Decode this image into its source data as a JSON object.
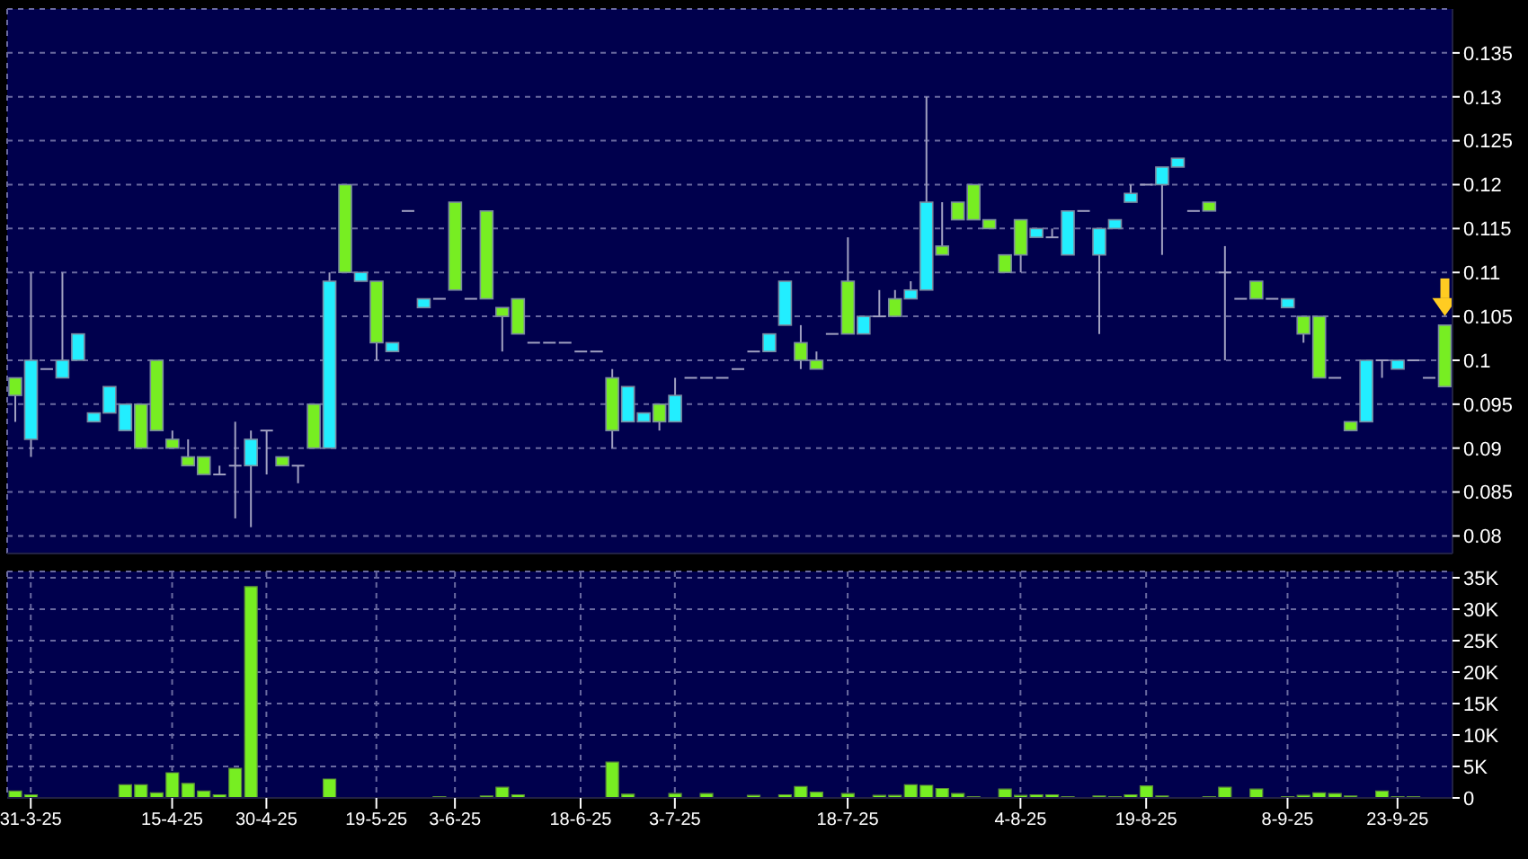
{
  "chart_data": [
    {
      "type": "candlestick",
      "categories": [
        null,
        null,
        null,
        null,
        null,
        null,
        null,
        null,
        null,
        null,
        null,
        null,
        null,
        null,
        null,
        null,
        null,
        null,
        null,
        null,
        null,
        null,
        null,
        null,
        null,
        null,
        null,
        null,
        null,
        null,
        null,
        null,
        null,
        null,
        null,
        null,
        null,
        null,
        null,
        null,
        null,
        null,
        null,
        null,
        null,
        null,
        null,
        null,
        null,
        null,
        null,
        null,
        null,
        null,
        null,
        null,
        null,
        null,
        null,
        null,
        null,
        null,
        null,
        null,
        null,
        null,
        null,
        null,
        null,
        null,
        null,
        null,
        null,
        null,
        null,
        null,
        null,
        null,
        null,
        null,
        null,
        null,
        null,
        null,
        null,
        null,
        null,
        null,
        null,
        null,
        null,
        null
      ],
      "ohlc": [
        [
          0.098,
          0.098,
          0.093,
          0.096
        ],
        [
          0.091,
          0.11,
          0.089,
          0.1
        ],
        [
          0.099,
          0.099,
          0.099,
          0.099
        ],
        [
          0.098,
          0.11,
          0.098,
          0.1
        ],
        [
          0.1,
          0.103,
          0.1,
          0.103
        ],
        [
          0.093,
          0.094,
          0.093,
          0.094
        ],
        [
          0.094,
          0.097,
          0.094,
          0.097
        ],
        [
          0.092,
          0.095,
          0.092,
          0.095
        ],
        [
          0.095,
          0.095,
          0.09,
          0.09
        ],
        [
          0.1,
          0.1,
          0.092,
          0.092
        ],
        [
          0.091,
          0.092,
          0.09,
          0.09
        ],
        [
          0.089,
          0.091,
          0.088,
          0.088
        ],
        [
          0.089,
          0.089,
          0.087,
          0.087
        ],
        [
          0.087,
          0.088,
          0.087,
          0.087
        ],
        [
          0.088,
          0.093,
          0.082,
          0.088
        ],
        [
          0.088,
          0.092,
          0.081,
          0.091
        ],
        [
          0.092,
          0.092,
          0.087,
          0.092
        ],
        [
          0.089,
          0.089,
          0.088,
          0.088
        ],
        [
          0.088,
          0.088,
          0.086,
          0.088
        ],
        [
          0.095,
          0.095,
          0.09,
          0.09
        ],
        [
          0.09,
          0.11,
          0.09,
          0.109
        ],
        [
          0.12,
          0.12,
          0.11,
          0.11
        ],
        [
          0.109,
          0.11,
          0.109,
          0.11
        ],
        [
          0.109,
          0.109,
          0.1,
          0.102
        ],
        [
          0.101,
          0.102,
          0.101,
          0.102
        ],
        [
          0.117,
          0.117,
          0.117,
          0.117
        ],
        [
          0.106,
          0.107,
          0.106,
          0.107
        ],
        [
          0.107,
          0.107,
          0.107,
          0.107
        ],
        [
          0.118,
          0.118,
          0.108,
          0.108
        ],
        [
          0.107,
          0.107,
          0.107,
          0.107
        ],
        [
          0.117,
          0.117,
          0.107,
          0.107
        ],
        [
          0.106,
          0.106,
          0.101,
          0.105
        ],
        [
          0.107,
          0.107,
          0.103,
          0.103
        ],
        [
          0.102,
          0.102,
          0.102,
          0.102
        ],
        [
          0.102,
          0.102,
          0.102,
          0.102
        ],
        [
          0.102,
          0.102,
          0.102,
          0.102
        ],
        [
          0.101,
          0.101,
          0.101,
          0.101
        ],
        [
          0.101,
          0.101,
          0.101,
          0.101
        ],
        [
          0.098,
          0.099,
          0.09,
          0.092
        ],
        [
          0.093,
          0.097,
          0.093,
          0.097
        ],
        [
          0.093,
          0.094,
          0.093,
          0.094
        ],
        [
          0.095,
          0.095,
          0.092,
          0.093
        ],
        [
          0.093,
          0.098,
          0.093,
          0.096
        ],
        [
          0.098,
          0.098,
          0.098,
          0.098
        ],
        [
          0.098,
          0.098,
          0.098,
          0.098
        ],
        [
          0.098,
          0.098,
          0.098,
          0.098
        ],
        [
          0.099,
          0.099,
          0.099,
          0.099
        ],
        [
          0.101,
          0.101,
          0.101,
          0.101
        ],
        [
          0.101,
          0.103,
          0.101,
          0.103
        ],
        [
          0.104,
          0.109,
          0.104,
          0.109
        ],
        [
          0.102,
          0.104,
          0.099,
          0.1
        ],
        [
          0.1,
          0.101,
          0.099,
          0.099
        ],
        [
          0.103,
          0.103,
          0.103,
          0.103
        ],
        [
          0.109,
          0.114,
          0.103,
          0.103
        ],
        [
          0.103,
          0.105,
          0.103,
          0.105
        ],
        [
          0.105,
          0.108,
          0.105,
          0.105
        ],
        [
          0.107,
          0.108,
          0.105,
          0.105
        ],
        [
          0.107,
          0.109,
          0.107,
          0.108
        ],
        [
          0.108,
          0.13,
          0.108,
          0.118
        ],
        [
          0.113,
          0.118,
          0.112,
          0.112
        ],
        [
          0.118,
          0.118,
          0.116,
          0.116
        ],
        [
          0.12,
          0.12,
          0.116,
          0.116
        ],
        [
          0.116,
          0.116,
          0.115,
          0.115
        ],
        [
          0.112,
          0.112,
          0.11,
          0.11
        ],
        [
          0.116,
          0.116,
          0.11,
          0.112
        ],
        [
          0.114,
          0.115,
          0.114,
          0.115
        ],
        [
          0.114,
          0.115,
          0.114,
          0.114
        ],
        [
          0.112,
          0.117,
          0.112,
          0.117
        ],
        [
          0.117,
          0.117,
          0.117,
          0.117
        ],
        [
          0.112,
          0.115,
          0.103,
          0.115
        ],
        [
          0.115,
          0.116,
          0.115,
          0.116
        ],
        [
          0.118,
          0.12,
          0.118,
          0.119
        ],
        [
          0.12,
          0.12,
          0.12,
          0.12
        ],
        [
          0.12,
          0.122,
          0.112,
          0.122
        ],
        [
          0.122,
          0.123,
          0.122,
          0.123
        ],
        [
          0.117,
          0.117,
          0.117,
          0.117
        ],
        [
          0.118,
          0.118,
          0.117,
          0.117
        ],
        [
          0.11,
          0.113,
          0.1,
          0.11
        ],
        [
          0.107,
          0.107,
          0.107,
          0.107
        ],
        [
          0.109,
          0.109,
          0.107,
          0.107
        ],
        [
          0.107,
          0.107,
          0.107,
          0.107
        ],
        [
          0.106,
          0.107,
          0.106,
          0.107
        ],
        [
          0.105,
          0.105,
          0.102,
          0.103
        ],
        [
          0.105,
          0.105,
          0.098,
          0.098
        ],
        [
          0.098,
          0.098,
          0.098,
          0.098
        ],
        [
          0.093,
          0.093,
          0.092,
          0.092
        ],
        [
          0.093,
          0.1,
          0.093,
          0.1
        ],
        [
          0.1,
          0.1,
          0.098,
          0.1
        ],
        [
          0.099,
          0.1,
          0.099,
          0.1
        ],
        [
          0.1,
          0.1,
          0.1,
          0.1
        ],
        [
          0.098,
          0.098,
          0.098,
          0.098
        ],
        [
          0.104,
          0.104,
          0.097,
          0.097
        ]
      ],
      "colors": [
        "#77ee22",
        "#22eeff",
        "#a0a0c0",
        "#22eeff",
        "#22eeff",
        "#22eeff",
        "#22eeff",
        "#22eeff",
        "#77ee22",
        "#77ee22",
        "#77ee22",
        "#77ee22",
        "#77ee22",
        "#a0a0c0",
        "#a0a0c0",
        "#22eeff",
        "#a0a0c0",
        "#77ee22",
        "#a0a0c0",
        "#77ee22",
        "#22eeff",
        "#77ee22",
        "#22eeff",
        "#77ee22",
        "#22eeff",
        "#a0a0c0",
        "#22eeff",
        "#a0a0c0",
        "#77ee22",
        "#a0a0c0",
        "#77ee22",
        "#77ee22",
        "#77ee22",
        "#a0a0c0",
        "#a0a0c0",
        "#a0a0c0",
        "#a0a0c0",
        "#a0a0c0",
        "#77ee22",
        "#22eeff",
        "#22eeff",
        "#77ee22",
        "#22eeff",
        "#a0a0c0",
        "#a0a0c0",
        "#a0a0c0",
        "#a0a0c0",
        "#a0a0c0",
        "#22eeff",
        "#22eeff",
        "#77ee22",
        "#77ee22",
        "#a0a0c0",
        "#77ee22",
        "#22eeff",
        "#a0a0c0",
        "#77ee22",
        "#22eeff",
        "#22eeff",
        "#77ee22",
        "#77ee22",
        "#77ee22",
        "#77ee22",
        "#77ee22",
        "#77ee22",
        "#22eeff",
        "#a0a0c0",
        "#22eeff",
        "#a0a0c0",
        "#22eeff",
        "#22eeff",
        "#22eeff",
        "#a0a0c0",
        "#22eeff",
        "#22eeff",
        "#a0a0c0",
        "#77ee22",
        "#a0a0c0",
        "#a0a0c0",
        "#77ee22",
        "#a0a0c0",
        "#22eeff",
        "#77ee22",
        "#77ee22",
        "#a0a0c0",
        "#77ee22",
        "#22eeff",
        "#a0a0c0",
        "#22eeff",
        "#a0a0c0",
        "#a0a0c0",
        "#77ee22"
      ],
      "ylim": [
        0.078,
        0.14
      ],
      "yticks": [
        0.08,
        0.085,
        0.09,
        0.095,
        0.1,
        0.105,
        0.11,
        0.115,
        0.12,
        0.125,
        0.13,
        0.135
      ],
      "grid": true,
      "tick_labels": "y"
    },
    {
      "type": "bar",
      "categories": [
        null,
        "31-3-25",
        null,
        null,
        null,
        null,
        null,
        null,
        null,
        null,
        "15-4-25",
        null,
        null,
        null,
        null,
        null,
        "30-4-25",
        null,
        null,
        null,
        null,
        null,
        null,
        "19-5-25",
        null,
        null,
        null,
        null,
        "3-6-25",
        null,
        null,
        null,
        null,
        null,
        null,
        null,
        "18-6-25",
        null,
        null,
        null,
        null,
        null,
        "3-7-25",
        null,
        null,
        null,
        null,
        null,
        null,
        null,
        null,
        null,
        null,
        "18-7-25",
        null,
        null,
        null,
        null,
        null,
        null,
        null,
        null,
        null,
        null,
        "4-8-25",
        null,
        null,
        null,
        null,
        null,
        null,
        null,
        "19-8-25",
        null,
        null,
        null,
        null,
        null,
        null,
        null,
        null,
        "8-9-25",
        null,
        null,
        null,
        null,
        null,
        null,
        "23-9-25",
        null,
        null,
        null
      ],
      "values": [
        1100,
        500,
        0,
        0,
        0,
        0,
        0,
        2100,
        2100,
        800,
        4000,
        2300,
        1100,
        500,
        4700,
        33600,
        0,
        0,
        0,
        0,
        3000,
        0,
        0,
        0,
        0,
        0,
        0,
        200,
        0,
        0,
        300,
        1700,
        500,
        0,
        0,
        0,
        0,
        0,
        5700,
        600,
        0,
        0,
        700,
        0,
        700,
        0,
        0,
        400,
        0,
        500,
        1800,
        900,
        0,
        700,
        0,
        400,
        400,
        2100,
        2000,
        1500,
        700,
        200,
        0,
        1400,
        400,
        500,
        500,
        200,
        0,
        300,
        200,
        500,
        1900,
        300,
        0,
        0,
        200,
        1700,
        0,
        1400,
        0,
        200,
        400,
        800,
        700,
        300,
        0,
        1100,
        200,
        200,
        0,
        0
      ],
      "color": "#77ee22",
      "ylim": [
        0,
        36000
      ],
      "yticks": [
        0,
        {
          "value": 5000,
          "label": "5K"
        },
        {
          "value": 10000,
          "label": "10K"
        },
        {
          "value": 15000,
          "label": "15K"
        },
        {
          "value": 20000,
          "label": "20K"
        },
        {
          "value": 25000,
          "label": "25K"
        },
        {
          "value": 30000,
          "label": "30K"
        },
        {
          "value": 35000,
          "label": "35K"
        }
      ],
      "grid": true
    }
  ]
}
